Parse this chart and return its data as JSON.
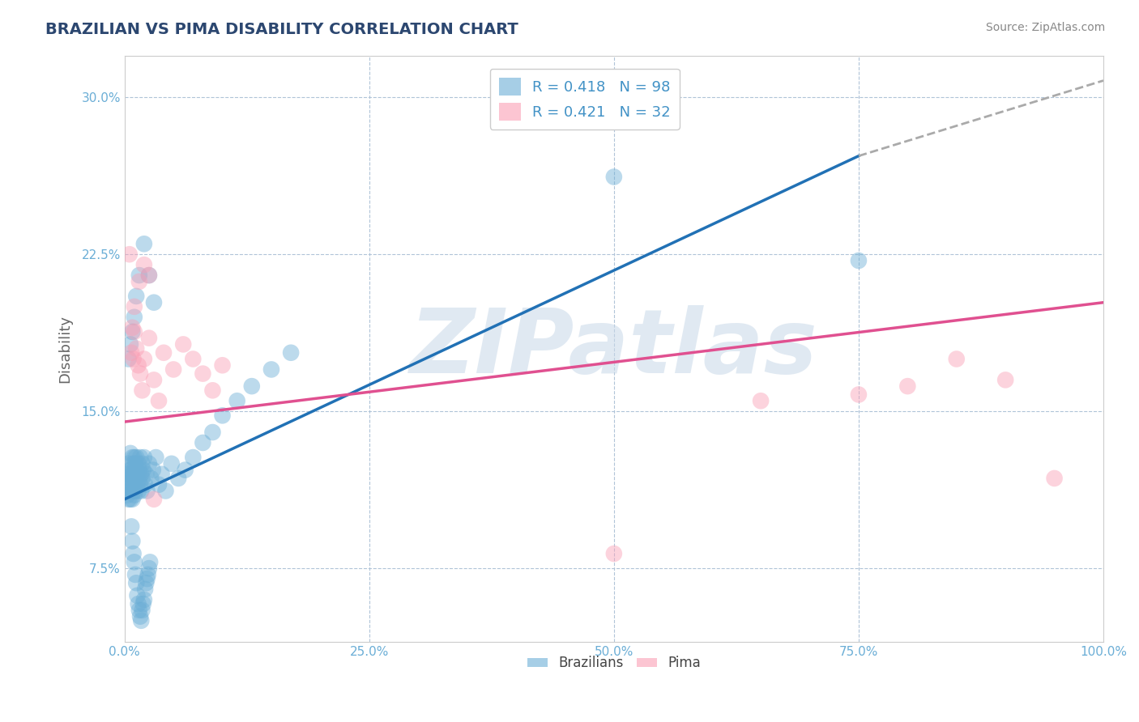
{
  "title": "BRAZILIAN VS PIMA DISABILITY CORRELATION CHART",
  "source": "Source: ZipAtlas.com",
  "ylabel": "Disability",
  "xlim": [
    0.0,
    1.0
  ],
  "ylim": [
    0.04,
    0.32
  ],
  "xticks": [
    0.0,
    0.25,
    0.5,
    0.75,
    1.0
  ],
  "xtick_labels": [
    "0.0%",
    "25.0%",
    "50.0%",
    "75.0%",
    "100.0%"
  ],
  "yticks": [
    0.075,
    0.15,
    0.225,
    0.3
  ],
  "ytick_labels": [
    "7.5%",
    "15.0%",
    "22.5%",
    "30.0%"
  ],
  "blue_color": "#6baed6",
  "blue_line_color": "#2171b5",
  "pink_color": "#fa9fb5",
  "pink_line_color": "#e05090",
  "dashed_color": "#aaaaaa",
  "blue_R": 0.418,
  "blue_N": 98,
  "pink_R": 0.421,
  "pink_N": 32,
  "watermark": "ZIPatlas",
  "watermark_color": "#c8d8e8",
  "grid_color": "#b0c4d8",
  "background_color": "#ffffff",
  "title_color": "#2c4770",
  "axis_label_color": "#666666",
  "tick_label_color": "#6baed6",
  "legend_text_color": "#4292c6",
  "blue_trend_x0": 0.0,
  "blue_trend_y0": 0.108,
  "blue_trend_x1": 0.75,
  "blue_trend_y1": 0.272,
  "blue_trend_x2": 1.0,
  "blue_trend_y2": 0.308,
  "pink_trend_x0": 0.0,
  "pink_trend_y0": 0.145,
  "pink_trend_x1": 1.0,
  "pink_trend_y1": 0.202,
  "blue_scatter_x": [
    0.002,
    0.003,
    0.003,
    0.004,
    0.004,
    0.005,
    0.005,
    0.005,
    0.006,
    0.006,
    0.006,
    0.007,
    0.007,
    0.007,
    0.008,
    0.008,
    0.008,
    0.008,
    0.009,
    0.009,
    0.009,
    0.01,
    0.01,
    0.01,
    0.01,
    0.01,
    0.011,
    0.011,
    0.011,
    0.012,
    0.012,
    0.012,
    0.013,
    0.013,
    0.014,
    0.014,
    0.015,
    0.015,
    0.016,
    0.016,
    0.017,
    0.017,
    0.018,
    0.018,
    0.019,
    0.02,
    0.021,
    0.022,
    0.023,
    0.025,
    0.027,
    0.029,
    0.032,
    0.035,
    0.038,
    0.042,
    0.048,
    0.055,
    0.062,
    0.07,
    0.08,
    0.09,
    0.1,
    0.115,
    0.13,
    0.15,
    0.17,
    0.02,
    0.025,
    0.03,
    0.007,
    0.008,
    0.009,
    0.01,
    0.011,
    0.012,
    0.013,
    0.014,
    0.015,
    0.016,
    0.017,
    0.018,
    0.019,
    0.02,
    0.021,
    0.022,
    0.023,
    0.024,
    0.025,
    0.026,
    0.5,
    0.75,
    0.004,
    0.006,
    0.008,
    0.01,
    0.012,
    0.015
  ],
  "blue_scatter_y": [
    0.115,
    0.12,
    0.11,
    0.125,
    0.108,
    0.118,
    0.112,
    0.122,
    0.115,
    0.108,
    0.13,
    0.118,
    0.112,
    0.122,
    0.115,
    0.108,
    0.12,
    0.128,
    0.112,
    0.118,
    0.125,
    0.11,
    0.118,
    0.122,
    0.128,
    0.115,
    0.12,
    0.112,
    0.125,
    0.118,
    0.122,
    0.128,
    0.115,
    0.12,
    0.112,
    0.125,
    0.118,
    0.122,
    0.128,
    0.115,
    0.12,
    0.112,
    0.125,
    0.118,
    0.122,
    0.128,
    0.115,
    0.12,
    0.112,
    0.125,
    0.118,
    0.122,
    0.128,
    0.115,
    0.12,
    0.112,
    0.125,
    0.118,
    0.122,
    0.128,
    0.135,
    0.14,
    0.148,
    0.155,
    0.162,
    0.17,
    0.178,
    0.23,
    0.215,
    0.202,
    0.095,
    0.088,
    0.082,
    0.078,
    0.072,
    0.068,
    0.062,
    0.058,
    0.055,
    0.052,
    0.05,
    0.055,
    0.058,
    0.06,
    0.065,
    0.068,
    0.07,
    0.072,
    0.075,
    0.078,
    0.262,
    0.222,
    0.175,
    0.182,
    0.188,
    0.195,
    0.205,
    0.215
  ],
  "pink_scatter_x": [
    0.005,
    0.007,
    0.008,
    0.009,
    0.01,
    0.012,
    0.014,
    0.016,
    0.018,
    0.02,
    0.025,
    0.03,
    0.035,
    0.04,
    0.05,
    0.06,
    0.07,
    0.08,
    0.09,
    0.1,
    0.5,
    0.65,
    0.75,
    0.8,
    0.85,
    0.9,
    0.95,
    0.01,
    0.015,
    0.02,
    0.025,
    0.03
  ],
  "pink_scatter_y": [
    0.225,
    0.178,
    0.19,
    0.175,
    0.188,
    0.18,
    0.172,
    0.168,
    0.16,
    0.175,
    0.185,
    0.165,
    0.155,
    0.178,
    0.17,
    0.182,
    0.175,
    0.168,
    0.16,
    0.172,
    0.082,
    0.155,
    0.158,
    0.162,
    0.175,
    0.165,
    0.118,
    0.2,
    0.212,
    0.22,
    0.215,
    0.108
  ]
}
